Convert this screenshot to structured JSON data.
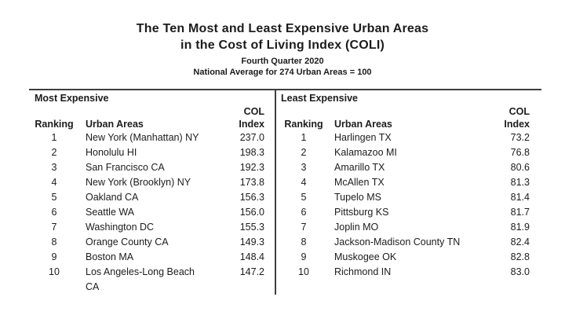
{
  "title": {
    "line1": "The Ten Most and Least Expensive Urban Areas",
    "line2": "in the Cost of Living Index (COLI)",
    "line3": "Fourth Quarter 2020",
    "line4": "National Average for 274 Urban Areas = 100"
  },
  "columns": {
    "ranking": "Ranking",
    "urban_areas": "Urban Areas",
    "col_line1": "COL",
    "col_line2": "Index"
  },
  "tables": [
    {
      "section": "Most Expensive",
      "rows": [
        {
          "ranking": "1",
          "urban_area": "New York (Manhattan) NY",
          "col_index": "237.0"
        },
        {
          "ranking": "2",
          "urban_area": "Honolulu HI",
          "col_index": "198.3"
        },
        {
          "ranking": "3",
          "urban_area": "San Francisco CA",
          "col_index": "192.3"
        },
        {
          "ranking": "4",
          "urban_area": "New York (Brooklyn) NY",
          "col_index": "173.8"
        },
        {
          "ranking": "5",
          "urban_area": "Oakland CA",
          "col_index": "156.3"
        },
        {
          "ranking": "6",
          "urban_area": "Seattle WA",
          "col_index": "156.0"
        },
        {
          "ranking": "7",
          "urban_area": "Washington DC",
          "col_index": "155.3"
        },
        {
          "ranking": "8",
          "urban_area": "Orange County CA",
          "col_index": "149.3"
        },
        {
          "ranking": "9",
          "urban_area": "Boston MA",
          "col_index": "148.4"
        },
        {
          "ranking": "10",
          "urban_area": "Los Angeles-Long Beach CA",
          "col_index": "147.2"
        }
      ]
    },
    {
      "section": "Least Expensive",
      "rows": [
        {
          "ranking": "1",
          "urban_area": "Harlingen TX",
          "col_index": "73.2"
        },
        {
          "ranking": "2",
          "urban_area": "Kalamazoo MI",
          "col_index": "76.8"
        },
        {
          "ranking": "3",
          "urban_area": "Amarillo TX",
          "col_index": "80.6"
        },
        {
          "ranking": "4",
          "urban_area": "McAllen TX",
          "col_index": "81.3"
        },
        {
          "ranking": "5",
          "urban_area": "Tupelo MS",
          "col_index": "81.4"
        },
        {
          "ranking": "6",
          "urban_area": "Pittsburg KS",
          "col_index": "81.7"
        },
        {
          "ranking": "7",
          "urban_area": "Joplin MO",
          "col_index": "81.9"
        },
        {
          "ranking": "8",
          "urban_area": "Jackson-Madison County TN",
          "col_index": "82.4"
        },
        {
          "ranking": "9",
          "urban_area": "Muskogee OK",
          "col_index": "82.8"
        },
        {
          "ranking": "10",
          "urban_area": "Richmond IN",
          "col_index": "83.0"
        }
      ]
    }
  ],
  "colors": {
    "text": "#1c1c1c",
    "rule": "#3f3f3f",
    "background": "#ffffff"
  }
}
